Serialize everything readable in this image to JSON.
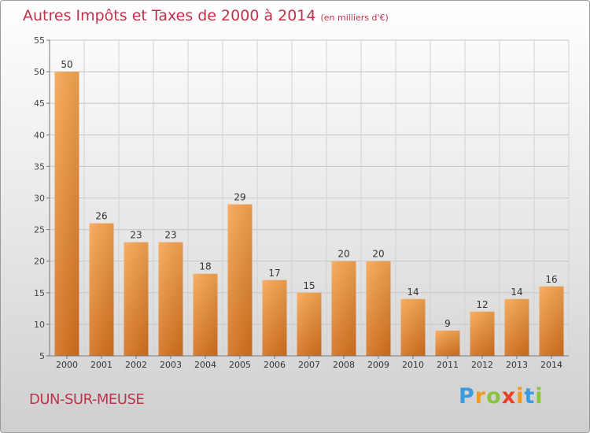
{
  "title": "Autres Impôts et Taxes de 2000 à 2014",
  "unit": "(en milliers d'€)",
  "place": "DUN-SUR-MEUSE",
  "logo": {
    "letters": [
      "P",
      "r",
      "o",
      "x",
      "i",
      "t",
      "i"
    ],
    "colors": [
      "#3a9be0",
      "#f39a1e",
      "#8ac43f",
      "#e8402a",
      "#f39a1e",
      "#3a9be0",
      "#8ac43f"
    ]
  },
  "colors": {
    "bar_top": "#f7a652",
    "bar_bottom": "#d4711e",
    "title": "#c0324a"
  },
  "chart_data": {
    "type": "bar",
    "categories": [
      "2000",
      "2001",
      "2002",
      "2003",
      "2004",
      "2005",
      "2006",
      "2007",
      "2008",
      "2009",
      "2010",
      "2011",
      "2012",
      "2013",
      "2014"
    ],
    "values": [
      50,
      26,
      23,
      23,
      18,
      29,
      17,
      15,
      20,
      20,
      14,
      9,
      12,
      14,
      16
    ],
    "ylim": [
      5,
      55
    ],
    "yticks": [
      5,
      10,
      15,
      20,
      25,
      30,
      35,
      40,
      45,
      50,
      55
    ],
    "grid": true
  }
}
